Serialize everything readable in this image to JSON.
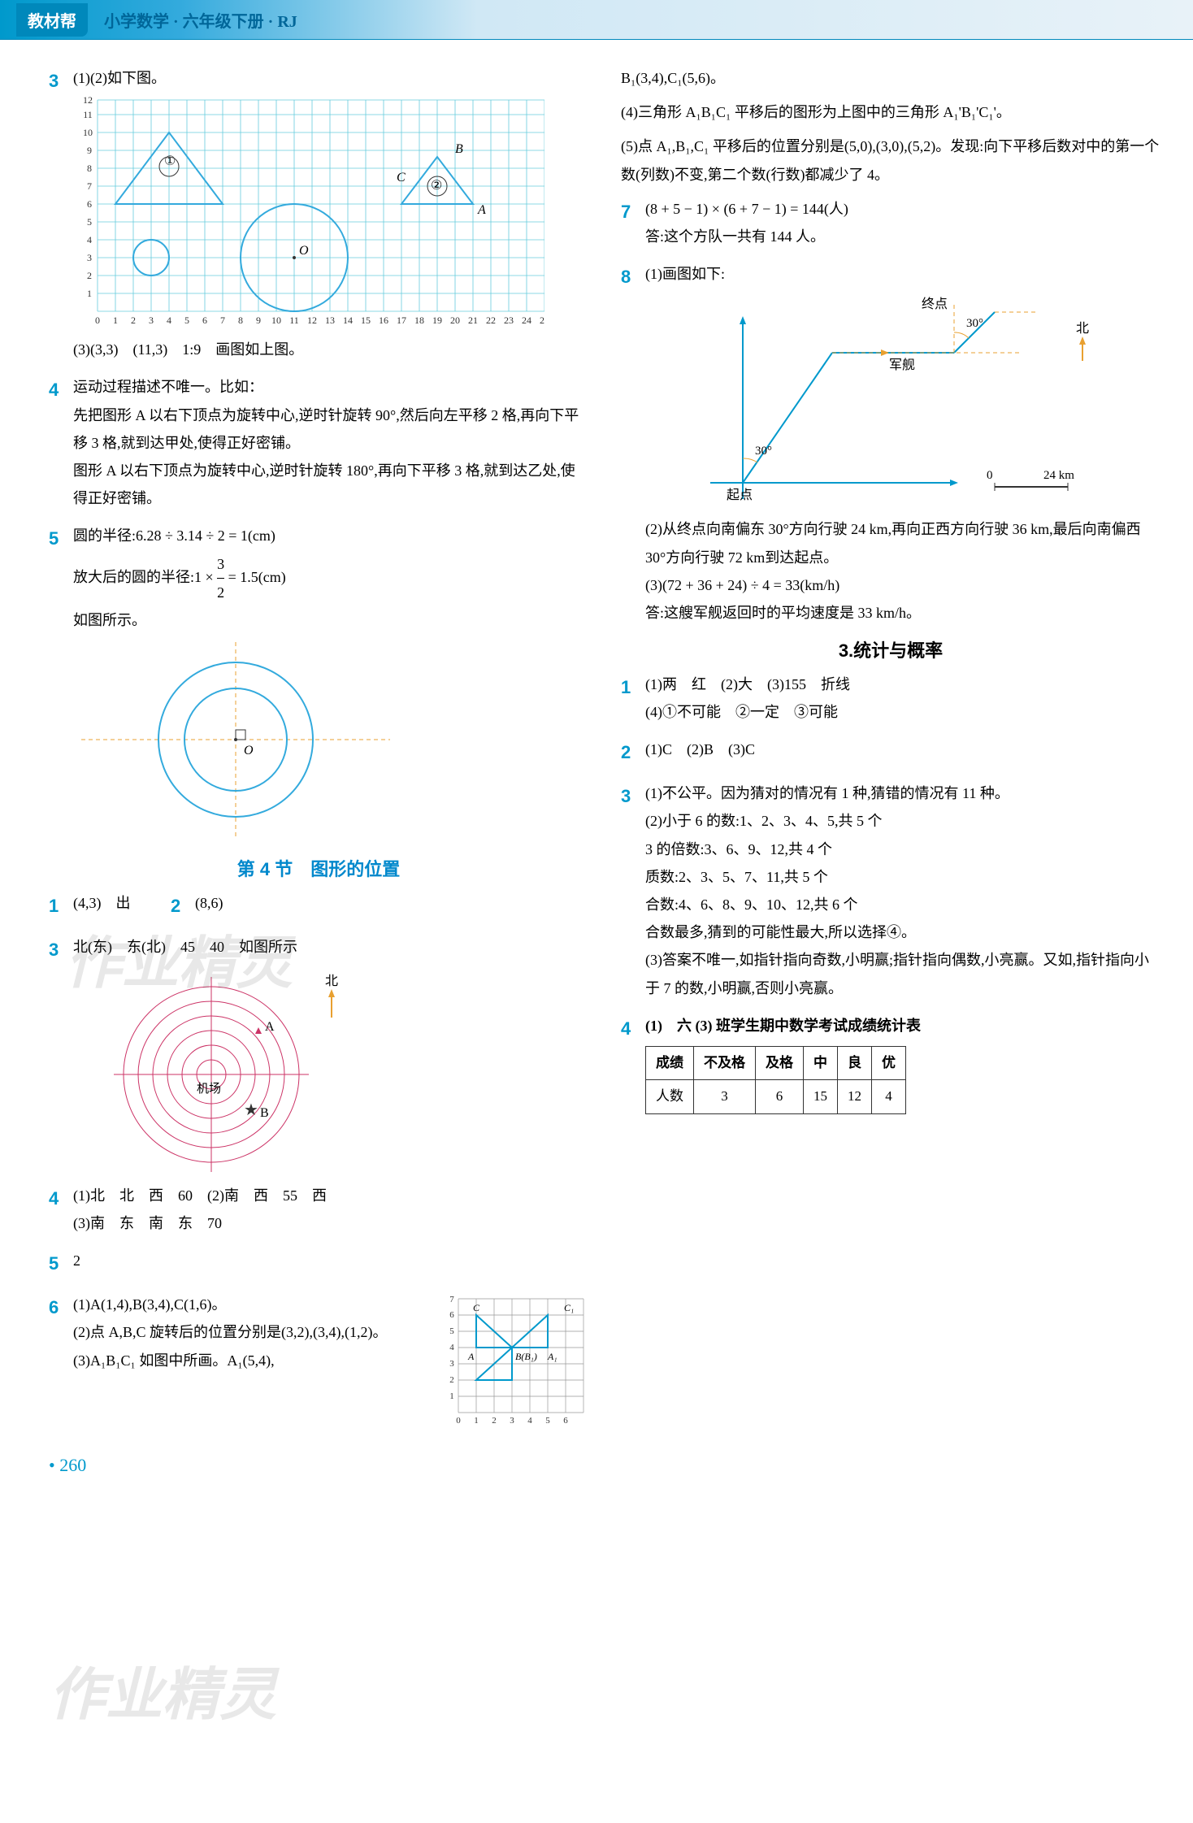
{
  "header": {
    "badge": "教材帮",
    "title": "小学数学 · 六年级下册 · RJ"
  },
  "left": {
    "q3": {
      "num": "3",
      "line1": "(1)(2)如下图。",
      "grid": {
        "xmax": 25,
        "ymax": 12,
        "grid_color": "#66ccdd",
        "tri1_label": "①",
        "tri2_label": "②",
        "labelA": "A",
        "labelB": "B",
        "labelC": "C",
        "labelO": "O"
      },
      "line2": "(3)(3,3)　(11,3)　1:9　画图如上图。"
    },
    "q4": {
      "num": "4",
      "text": "运动过程描述不唯一。比如：\n先把图形 A 以右下顶点为旋转中心,逆时针旋转 90°,然后向左平移 2 格,再向下平移 3 格,就到达甲处,使得正好密铺。\n图形 A 以右下顶点为旋转中心,逆时针旋转 180°,再向下平移 3 格,就到达乙处,使得正好密铺。"
    },
    "q5": {
      "num": "5",
      "line1": "圆的半径:6.28 ÷ 3.14 ÷ 2 = 1(cm)",
      "line2": "放大后的圆的半径:1 × 3/2 = 1.5(cm)",
      "line3": "如图所示。",
      "circles": {
        "outer_r": 90,
        "inner_r": 60,
        "small_r": 30,
        "stroke": "#33aadd",
        "dash_color": "#e8a030",
        "labelO": "O"
      }
    },
    "section4": "第 4 节　图形的位置",
    "s4q1": {
      "num": "1",
      "text": "(4,3)　出"
    },
    "s4q2": {
      "num": "2",
      "text": "(8,6)"
    },
    "s4q3": {
      "num": "3",
      "text": "北(东)　东(北)　45　40　如图所示",
      "radar": {
        "rings": 6,
        "stroke": "#cc3366",
        "center_label": "机场",
        "ptA": "A",
        "ptB": "B",
        "north": "北",
        "north_color": "#e8a030"
      }
    },
    "s4q4": {
      "num": "4",
      "text": "(1)北　北　西　60　(2)南　西　55　西\n(3)南　东　南　东　70"
    },
    "s4q5": {
      "num": "5",
      "text": "2"
    },
    "s4q6": {
      "num": "6",
      "text": "(1)A(1,4),B(3,4),C(1,6)。\n(2)点 A,B,C 旋转后的位置分别是(3,2),(3,4),(1,2)。\n(3)A₁B₁C₁ 如图中所画。A₁(5,4),",
      "mini_grid": {
        "xmax": 7,
        "ymax": 7,
        "grid_color": "#999"
      }
    }
  },
  "right": {
    "cont": "B₁(3,4),C₁(5,6)。",
    "p4": "(4)三角形 A₁B₁C₁ 平移后的图形为上图中的三角形 A₁'B₁'C₁'。",
    "p5": "(5)点 A₁,B₁,C₁ 平移后的位置分别是(5,0),(3,0),(5,2)。发现:向下平移后数对中的第一个数(列数)不变,第二个数(行数)都减少了 4。",
    "q7": {
      "num": "7",
      "line1": "(8 + 5 − 1) × (6 + 7 − 1) = 144(人)",
      "line2": "答:这个方队一共有 144 人。"
    },
    "q8": {
      "num": "8",
      "line1": "(1)画图如下:",
      "diagram": {
        "start": "起点",
        "end": "终点",
        "ship": "军舰",
        "north": "北",
        "angle": "30°",
        "scale": "0　24 km",
        "line_color": "#0099cc",
        "dash_color": "#e8a030"
      },
      "line2": "(2)从终点向南偏东 30°方向行驶 24 km,再向正西方向行驶 36 km,最后向南偏西 30°方向行驶 72 km到达起点。",
      "line3": "(3)(72 + 36 + 24) ÷ 4 = 33(km/h)",
      "line4": "答:这艘军舰返回时的平均速度是 33 km/h。"
    },
    "section3": "3.统计与概率",
    "s3q1": {
      "num": "1",
      "text": "(1)两　红　(2)大　(3)155　折线\n(4)①不可能　②一定　③可能"
    },
    "s3q2": {
      "num": "2",
      "text": "(1)C　(2)B　(3)C"
    },
    "s3q3": {
      "num": "3",
      "text": "(1)不公平。因为猜对的情况有 1 种,猜错的情况有 11 种。\n(2)小于 6 的数:1、2、3、4、5,共 5 个\n3 的倍数:3、6、9、12,共 4 个\n质数:2、3、5、7、11,共 5 个\n合数:4、6、8、9、10、12,共 6 个\n合数最多,猜到的可能性最大,所以选择④。\n(3)答案不唯一,如指针指向奇数,小明赢;指针指向偶数,小亮赢。又如,指针指向小于 7 的数,小明赢,否则小亮赢。"
    },
    "s3q4": {
      "num": "4",
      "title": "(1)　六 (3) 班学生期中数学考试成绩统计表",
      "table": {
        "headers": [
          "成绩",
          "不及格",
          "及格",
          "中",
          "良",
          "优"
        ],
        "row_label": "人数",
        "values": [
          "3",
          "6",
          "15",
          "12",
          "4"
        ]
      }
    }
  },
  "page_number": "260",
  "watermark1": "作业精灵",
  "watermark2": "作业精灵"
}
